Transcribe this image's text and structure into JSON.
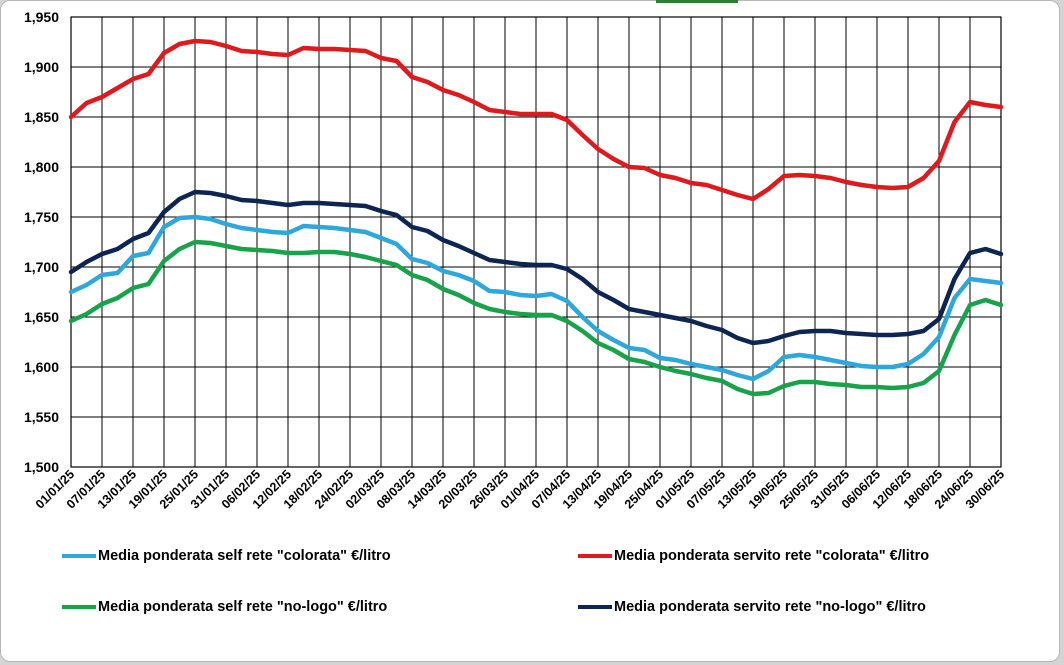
{
  "chart_data": {
    "type": "line",
    "ylim": [
      1.5,
      1.95
    ],
    "yticks": [
      "1,500",
      "1,550",
      "1,600",
      "1,650",
      "1,700",
      "1,750",
      "1,800",
      "1,850",
      "1,900",
      "1,950"
    ],
    "xlim": [
      "01/01/25",
      "30/06/25"
    ],
    "xticks": [
      "01/01/25",
      "07/01/25",
      "13/01/25",
      "19/01/25",
      "25/01/25",
      "31/01/25",
      "06/02/25",
      "12/02/25",
      "18/02/25",
      "24/02/25",
      "02/03/25",
      "08/03/25",
      "14/03/25",
      "20/03/25",
      "26/03/25",
      "01/04/25",
      "07/04/25",
      "13/04/25",
      "19/04/25",
      "25/04/25",
      "01/05/25",
      "07/05/25",
      "13/05/25",
      "19/05/25",
      "25/05/25",
      "31/05/25",
      "06/06/25",
      "12/06/25",
      "18/06/25",
      "24/06/25",
      "30/06/25"
    ],
    "grid": true,
    "legend_position": "bottom",
    "series": [
      {
        "name": "Media ponderata self rete \"colorata\" €/litro",
        "color": "#2ea8dc",
        "points": [
          [
            "01/01/25",
            1.675
          ],
          [
            "04/01/25",
            1.682
          ],
          [
            "07/01/25",
            1.692
          ],
          [
            "10/01/25",
            1.694
          ],
          [
            "13/01/25",
            1.711
          ],
          [
            "16/01/25",
            1.714
          ],
          [
            "19/01/25",
            1.74
          ],
          [
            "22/01/25",
            1.749
          ],
          [
            "25/01/25",
            1.75
          ],
          [
            "28/01/25",
            1.748
          ],
          [
            "31/01/25",
            1.743
          ],
          [
            "03/02/25",
            1.739
          ],
          [
            "06/02/25",
            1.737
          ],
          [
            "09/02/25",
            1.735
          ],
          [
            "12/02/25",
            1.734
          ],
          [
            "15/02/25",
            1.741
          ],
          [
            "18/02/25",
            1.74
          ],
          [
            "21/02/25",
            1.739
          ],
          [
            "24/02/25",
            1.737
          ],
          [
            "27/02/25",
            1.735
          ],
          [
            "02/03/25",
            1.729
          ],
          [
            "05/03/25",
            1.723
          ],
          [
            "08/03/25",
            1.708
          ],
          [
            "11/03/25",
            1.704
          ],
          [
            "14/03/25",
            1.696
          ],
          [
            "17/03/25",
            1.692
          ],
          [
            "20/03/25",
            1.686
          ],
          [
            "23/03/25",
            1.676
          ],
          [
            "26/03/25",
            1.675
          ],
          [
            "29/03/25",
            1.672
          ],
          [
            "01/04/25",
            1.671
          ],
          [
            "04/04/25",
            1.673
          ],
          [
            "07/04/25",
            1.666
          ],
          [
            "10/04/25",
            1.65
          ],
          [
            "13/04/25",
            1.636
          ],
          [
            "16/04/25",
            1.627
          ],
          [
            "19/04/25",
            1.619
          ],
          [
            "22/04/25",
            1.617
          ],
          [
            "25/04/25",
            1.609
          ],
          [
            "28/04/25",
            1.607
          ],
          [
            "01/05/25",
            1.603
          ],
          [
            "04/05/25",
            1.6
          ],
          [
            "07/05/25",
            1.597
          ],
          [
            "10/05/25",
            1.592
          ],
          [
            "13/05/25",
            1.588
          ],
          [
            "16/05/25",
            1.596
          ],
          [
            "19/05/25",
            1.61
          ],
          [
            "22/05/25",
            1.612
          ],
          [
            "25/05/25",
            1.61
          ],
          [
            "28/05/25",
            1.607
          ],
          [
            "31/05/25",
            1.604
          ],
          [
            "03/06/25",
            1.601
          ],
          [
            "06/06/25",
            1.6
          ],
          [
            "09/06/25",
            1.6
          ],
          [
            "12/06/25",
            1.603
          ],
          [
            "15/06/25",
            1.613
          ],
          [
            "18/06/25",
            1.63
          ],
          [
            "21/06/25",
            1.669
          ],
          [
            "24/06/25",
            1.688
          ],
          [
            "27/06/25",
            1.686
          ],
          [
            "30/06/25",
            1.684
          ]
        ]
      },
      {
        "name": "Media ponderata servito rete \"colorata\" €/litro",
        "color": "#e0191d",
        "points": [
          [
            "01/01/25",
            1.85
          ],
          [
            "04/01/25",
            1.864
          ],
          [
            "07/01/25",
            1.87
          ],
          [
            "10/01/25",
            1.879
          ],
          [
            "13/01/25",
            1.888
          ],
          [
            "16/01/25",
            1.893
          ],
          [
            "19/01/25",
            1.914
          ],
          [
            "22/01/25",
            1.923
          ],
          [
            "25/01/25",
            1.926
          ],
          [
            "28/01/25",
            1.925
          ],
          [
            "31/01/25",
            1.921
          ],
          [
            "03/02/25",
            1.916
          ],
          [
            "06/02/25",
            1.915
          ],
          [
            "09/02/25",
            1.913
          ],
          [
            "12/02/25",
            1.912
          ],
          [
            "15/02/25",
            1.919
          ],
          [
            "18/02/25",
            1.918
          ],
          [
            "21/02/25",
            1.918
          ],
          [
            "24/02/25",
            1.917
          ],
          [
            "27/02/25",
            1.916
          ],
          [
            "02/03/25",
            1.909
          ],
          [
            "05/03/25",
            1.906
          ],
          [
            "08/03/25",
            1.89
          ],
          [
            "11/03/25",
            1.885
          ],
          [
            "14/03/25",
            1.877
          ],
          [
            "17/03/25",
            1.872
          ],
          [
            "20/03/25",
            1.865
          ],
          [
            "23/03/25",
            1.857
          ],
          [
            "26/03/25",
            1.855
          ],
          [
            "29/03/25",
            1.853
          ],
          [
            "01/04/25",
            1.853
          ],
          [
            "04/04/25",
            1.853
          ],
          [
            "07/04/25",
            1.847
          ],
          [
            "10/04/25",
            1.832
          ],
          [
            "13/04/25",
            1.818
          ],
          [
            "16/04/25",
            1.808
          ],
          [
            "19/04/25",
            1.8
          ],
          [
            "22/04/25",
            1.799
          ],
          [
            "25/04/25",
            1.792
          ],
          [
            "28/04/25",
            1.789
          ],
          [
            "01/05/25",
            1.784
          ],
          [
            "04/05/25",
            1.782
          ],
          [
            "07/05/25",
            1.777
          ],
          [
            "10/05/25",
            1.772
          ],
          [
            "13/05/25",
            1.768
          ],
          [
            "16/05/25",
            1.778
          ],
          [
            "19/05/25",
            1.791
          ],
          [
            "22/05/25",
            1.792
          ],
          [
            "25/05/25",
            1.791
          ],
          [
            "28/05/25",
            1.789
          ],
          [
            "31/05/25",
            1.785
          ],
          [
            "03/06/25",
            1.782
          ],
          [
            "06/06/25",
            1.78
          ],
          [
            "09/06/25",
            1.779
          ],
          [
            "12/06/25",
            1.78
          ],
          [
            "15/06/25",
            1.789
          ],
          [
            "18/06/25",
            1.806
          ],
          [
            "21/06/25",
            1.845
          ],
          [
            "24/06/25",
            1.865
          ],
          [
            "27/06/25",
            1.862
          ],
          [
            "30/06/25",
            1.86
          ]
        ]
      },
      {
        "name": "Media ponderata self rete \"no-logo\" €/litro",
        "color": "#16a34a",
        "points": [
          [
            "01/01/25",
            1.646
          ],
          [
            "04/01/25",
            1.653
          ],
          [
            "07/01/25",
            1.663
          ],
          [
            "10/01/25",
            1.669
          ],
          [
            "13/01/25",
            1.679
          ],
          [
            "16/01/25",
            1.683
          ],
          [
            "19/01/25",
            1.706
          ],
          [
            "22/01/25",
            1.718
          ],
          [
            "25/01/25",
            1.725
          ],
          [
            "28/01/25",
            1.724
          ],
          [
            "31/01/25",
            1.721
          ],
          [
            "03/02/25",
            1.718
          ],
          [
            "06/02/25",
            1.717
          ],
          [
            "09/02/25",
            1.716
          ],
          [
            "12/02/25",
            1.714
          ],
          [
            "15/02/25",
            1.714
          ],
          [
            "18/02/25",
            1.715
          ],
          [
            "21/02/25",
            1.715
          ],
          [
            "24/02/25",
            1.713
          ],
          [
            "27/02/25",
            1.71
          ],
          [
            "02/03/25",
            1.706
          ],
          [
            "05/03/25",
            1.702
          ],
          [
            "08/03/25",
            1.692
          ],
          [
            "11/03/25",
            1.687
          ],
          [
            "14/03/25",
            1.678
          ],
          [
            "17/03/25",
            1.672
          ],
          [
            "20/03/25",
            1.664
          ],
          [
            "23/03/25",
            1.658
          ],
          [
            "26/03/25",
            1.655
          ],
          [
            "29/03/25",
            1.653
          ],
          [
            "01/04/25",
            1.652
          ],
          [
            "04/04/25",
            1.652
          ],
          [
            "07/04/25",
            1.646
          ],
          [
            "10/04/25",
            1.636
          ],
          [
            "13/04/25",
            1.624
          ],
          [
            "16/04/25",
            1.617
          ],
          [
            "19/04/25",
            1.608
          ],
          [
            "22/04/25",
            1.605
          ],
          [
            "25/04/25",
            1.6
          ],
          [
            "28/04/25",
            1.596
          ],
          [
            "01/05/25",
            1.593
          ],
          [
            "04/05/25",
            1.589
          ],
          [
            "07/05/25",
            1.586
          ],
          [
            "10/05/25",
            1.578
          ],
          [
            "13/05/25",
            1.573
          ],
          [
            "16/05/25",
            1.574
          ],
          [
            "19/05/25",
            1.581
          ],
          [
            "22/05/25",
            1.585
          ],
          [
            "25/05/25",
            1.585
          ],
          [
            "28/05/25",
            1.583
          ],
          [
            "31/05/25",
            1.582
          ],
          [
            "03/06/25",
            1.58
          ],
          [
            "06/06/25",
            1.58
          ],
          [
            "09/06/25",
            1.579
          ],
          [
            "12/06/25",
            1.58
          ],
          [
            "15/06/25",
            1.584
          ],
          [
            "18/06/25",
            1.596
          ],
          [
            "21/06/25",
            1.632
          ],
          [
            "24/06/25",
            1.662
          ],
          [
            "27/06/25",
            1.667
          ],
          [
            "30/06/25",
            1.662
          ]
        ]
      },
      {
        "name": "Media ponderata servito rete \"no-logo\" €/litro",
        "color": "#0c2553",
        "points": [
          [
            "01/01/25",
            1.695
          ],
          [
            "04/01/25",
            1.705
          ],
          [
            "07/01/25",
            1.713
          ],
          [
            "10/01/25",
            1.718
          ],
          [
            "13/01/25",
            1.728
          ],
          [
            "16/01/25",
            1.734
          ],
          [
            "19/01/25",
            1.755
          ],
          [
            "22/01/25",
            1.768
          ],
          [
            "25/01/25",
            1.775
          ],
          [
            "28/01/25",
            1.774
          ],
          [
            "31/01/25",
            1.771
          ],
          [
            "03/02/25",
            1.767
          ],
          [
            "06/02/25",
            1.766
          ],
          [
            "09/02/25",
            1.764
          ],
          [
            "12/02/25",
            1.762
          ],
          [
            "15/02/25",
            1.764
          ],
          [
            "18/02/25",
            1.764
          ],
          [
            "21/02/25",
            1.763
          ],
          [
            "24/02/25",
            1.762
          ],
          [
            "27/02/25",
            1.761
          ],
          [
            "02/03/25",
            1.756
          ],
          [
            "05/03/25",
            1.752
          ],
          [
            "08/03/25",
            1.74
          ],
          [
            "11/03/25",
            1.736
          ],
          [
            "14/03/25",
            1.727
          ],
          [
            "17/03/25",
            1.721
          ],
          [
            "20/03/25",
            1.714
          ],
          [
            "23/03/25",
            1.707
          ],
          [
            "26/03/25",
            1.705
          ],
          [
            "29/03/25",
            1.703
          ],
          [
            "01/04/25",
            1.702
          ],
          [
            "04/04/25",
            1.702
          ],
          [
            "07/04/25",
            1.698
          ],
          [
            "10/04/25",
            1.688
          ],
          [
            "13/04/25",
            1.675
          ],
          [
            "16/04/25",
            1.667
          ],
          [
            "19/04/25",
            1.658
          ],
          [
            "22/04/25",
            1.655
          ],
          [
            "25/04/25",
            1.652
          ],
          [
            "28/04/25",
            1.649
          ],
          [
            "01/05/25",
            1.646
          ],
          [
            "04/05/25",
            1.641
          ],
          [
            "07/05/25",
            1.637
          ],
          [
            "10/05/25",
            1.629
          ],
          [
            "13/05/25",
            1.624
          ],
          [
            "16/05/25",
            1.626
          ],
          [
            "19/05/25",
            1.631
          ],
          [
            "22/05/25",
            1.635
          ],
          [
            "25/05/25",
            1.636
          ],
          [
            "28/05/25",
            1.636
          ],
          [
            "31/05/25",
            1.634
          ],
          [
            "03/06/25",
            1.633
          ],
          [
            "06/06/25",
            1.632
          ],
          [
            "09/06/25",
            1.632
          ],
          [
            "12/06/25",
            1.633
          ],
          [
            "15/06/25",
            1.636
          ],
          [
            "18/06/25",
            1.648
          ],
          [
            "21/06/25",
            1.688
          ],
          [
            "24/06/25",
            1.714
          ],
          [
            "27/06/25",
            1.718
          ],
          [
            "30/06/25",
            1.713
          ]
        ]
      }
    ]
  },
  "legend": {
    "self_colorata": "Media ponderata self rete \"colorata\" €/litro",
    "servito_colorata": "Media ponderata servito rete \"colorata\" €/litro",
    "self_nologo": "Media ponderata self rete \"no-logo\" €/litro",
    "servito_nologo": "Media ponderata servito rete \"no-logo\" €/litro"
  },
  "colors": {
    "self_colorata": "#2ea8dc",
    "servito_colorata": "#e0191d",
    "self_nologo": "#16a34a",
    "servito_nologo": "#0c2553",
    "gridline": "#000000",
    "background": "#ffffff"
  }
}
